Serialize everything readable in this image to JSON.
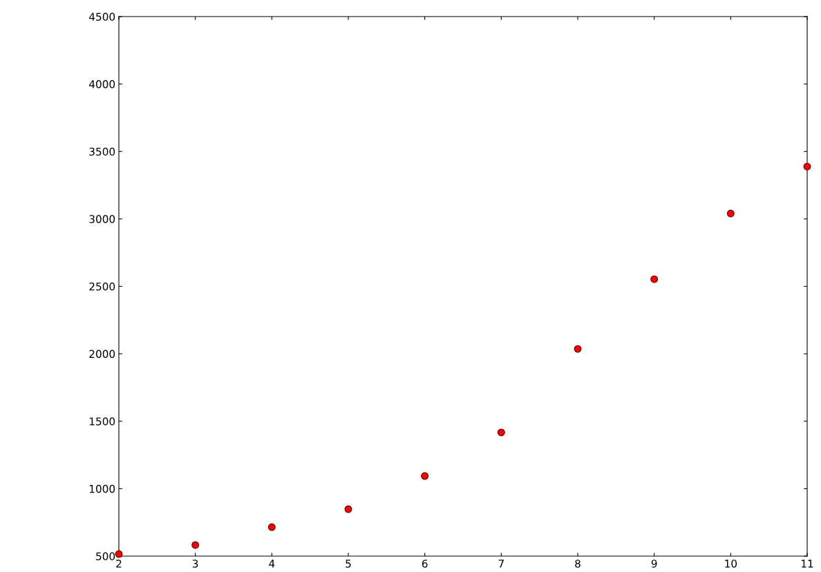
{
  "chart_data": {
    "type": "scatter",
    "x": [
      2,
      3,
      4,
      5,
      6,
      7,
      8,
      9,
      10,
      11
    ],
    "series": [
      {
        "color": "#ff0000",
        "values": [
          515,
          582,
          715,
          848,
          1094,
          1417,
          2036,
          2553,
          3040,
          3388
        ]
      }
    ],
    "xlim": [
      2,
      11
    ],
    "xticks": [
      2,
      3,
      4,
      5,
      6,
      7,
      8,
      9,
      10,
      11
    ],
    "ylim": [
      500,
      4500
    ],
    "yticks": [
      500,
      1000,
      1500,
      2000,
      2500,
      3000,
      3500,
      4000,
      4500
    ],
    "marker": "circle",
    "grid": false
  }
}
